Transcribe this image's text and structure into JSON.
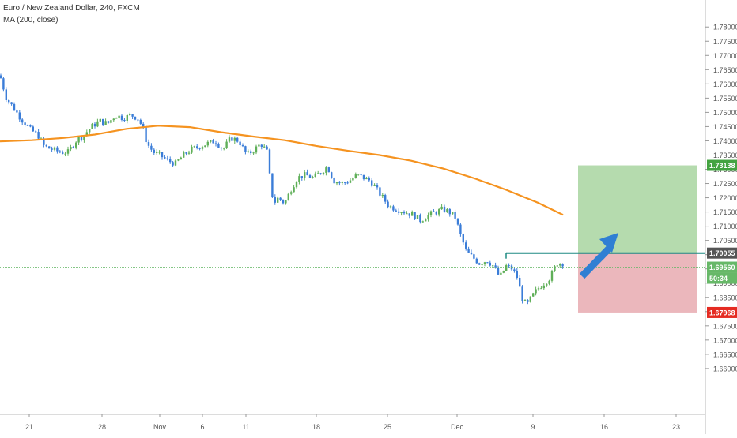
{
  "header": {
    "symbol_title": "Euro / New Zealand Dollar, 240, FXCM",
    "indicator": "MA (200, close)"
  },
  "colors": {
    "up_candle": "#5faf58",
    "down_candle": "#3b7dd8",
    "ma_line": "#f59320",
    "entry_line": "#1e8a83",
    "profit_zone": "#a8d5a0",
    "loss_zone": "#e8aab0",
    "target_tag": "#43a340",
    "current_tag": "#67b868",
    "stop_tag": "#e52b22",
    "entry_tag": "#555555",
    "arrow": "#2f7fd3",
    "axis_text": "#555555"
  },
  "chart_data": {
    "type": "candlestick",
    "title": "Euro / New Zealand Dollar, 240, FXCM",
    "ylim": [
      1.6425,
      1.7845
    ],
    "y_ticks": [
      "1.78000",
      "1.77500",
      "1.77000",
      "1.76500",
      "1.76000",
      "1.75500",
      "1.75000",
      "1.74500",
      "1.74000",
      "1.73500",
      "1.73000",
      "1.72500",
      "1.72000",
      "1.71500",
      "1.71000",
      "1.70500",
      "1.70000",
      "1.69500",
      "1.69000",
      "1.68500",
      "1.68000",
      "1.67500",
      "1.67000",
      "1.66500",
      "1.66000"
    ],
    "x_ticks": [
      "21",
      "28",
      "Nov",
      "6",
      "11",
      "18",
      "25",
      "Dec",
      "9",
      "16",
      "23"
    ],
    "price_path": [
      [
        0,
        1.763
      ],
      [
        8,
        1.755
      ],
      [
        16,
        1.752
      ],
      [
        26,
        1.748
      ],
      [
        38,
        1.744
      ],
      [
        48,
        1.742
      ],
      [
        56,
        1.738
      ],
      [
        66,
        1.737
      ],
      [
        76,
        1.736
      ],
      [
        86,
        1.736
      ],
      [
        96,
        1.74
      ],
      [
        106,
        1.742
      ],
      [
        116,
        1.745
      ],
      [
        126,
        1.747
      ],
      [
        136,
        1.746
      ],
      [
        146,
        1.749
      ],
      [
        156,
        1.748
      ],
      [
        166,
        1.749
      ],
      [
        174,
        1.748
      ],
      [
        180,
        1.745
      ],
      [
        186,
        1.739
      ],
      [
        194,
        1.736
      ],
      [
        202,
        1.735
      ],
      [
        212,
        1.733
      ],
      [
        222,
        1.732
      ],
      [
        232,
        1.735
      ],
      [
        242,
        1.737
      ],
      [
        252,
        1.738
      ],
      [
        262,
        1.739
      ],
      [
        272,
        1.74
      ],
      [
        282,
        1.737
      ],
      [
        292,
        1.741
      ],
      [
        302,
        1.74
      ],
      [
        312,
        1.735
      ],
      [
        322,
        1.737
      ],
      [
        330,
        1.739
      ],
      [
        338,
        1.736
      ],
      [
        342,
        1.725
      ],
      [
        346,
        1.718
      ],
      [
        352,
        1.72
      ],
      [
        360,
        1.718
      ],
      [
        368,
        1.723
      ],
      [
        376,
        1.727
      ],
      [
        386,
        1.728
      ],
      [
        396,
        1.727
      ],
      [
        406,
        1.729
      ],
      [
        414,
        1.731
      ],
      [
        422,
        1.726
      ],
      [
        432,
        1.725
      ],
      [
        442,
        1.726
      ],
      [
        452,
        1.728
      ],
      [
        460,
        1.727
      ],
      [
        468,
        1.726
      ],
      [
        476,
        1.723
      ],
      [
        484,
        1.72
      ],
      [
        492,
        1.717
      ],
      [
        502,
        1.716
      ],
      [
        512,
        1.715
      ],
      [
        522,
        1.714
      ],
      [
        532,
        1.712
      ],
      [
        542,
        1.714
      ],
      [
        552,
        1.715
      ],
      [
        560,
        1.716
      ],
      [
        568,
        1.715
      ],
      [
        576,
        1.713
      ],
      [
        582,
        1.707
      ],
      [
        590,
        1.701
      ],
      [
        598,
        1.699
      ],
      [
        606,
        1.697
      ],
      [
        616,
        1.698
      ],
      [
        624,
        1.696
      ],
      [
        632,
        1.692
      ],
      [
        640,
        1.696
      ],
      [
        648,
        1.695
      ],
      [
        654,
        1.692
      ],
      [
        660,
        1.685
      ],
      [
        666,
        1.682
      ],
      [
        672,
        1.685
      ],
      [
        680,
        1.688
      ],
      [
        688,
        1.69
      ],
      [
        696,
        1.692
      ],
      [
        704,
        1.697
      ],
      [
        712,
        1.697
      ]
    ],
    "ma_200": [
      [
        0,
        1.7398
      ],
      [
        40,
        1.7402
      ],
      [
        80,
        1.741
      ],
      [
        120,
        1.7422
      ],
      [
        160,
        1.7442
      ],
      [
        200,
        1.7453
      ],
      [
        240,
        1.7448
      ],
      [
        280,
        1.743
      ],
      [
        320,
        1.7415
      ],
      [
        360,
        1.7402
      ],
      [
        400,
        1.7382
      ],
      [
        440,
        1.7365
      ],
      [
        480,
        1.735
      ],
      [
        520,
        1.733
      ],
      [
        560,
        1.7303
      ],
      [
        600,
        1.7268
      ],
      [
        640,
        1.7228
      ],
      [
        680,
        1.7183
      ],
      [
        712,
        1.714
      ]
    ],
    "position": {
      "type": "long",
      "entry": 1.70055,
      "target": 1.73138,
      "stop": 1.67968,
      "current_price": 1.6956,
      "countdown": "50:34"
    },
    "price_labels": {
      "target": "1.73138",
      "entry": "1.70055",
      "current": "1.69560",
      "countdown": "50:34",
      "stop": "1.67968"
    }
  }
}
